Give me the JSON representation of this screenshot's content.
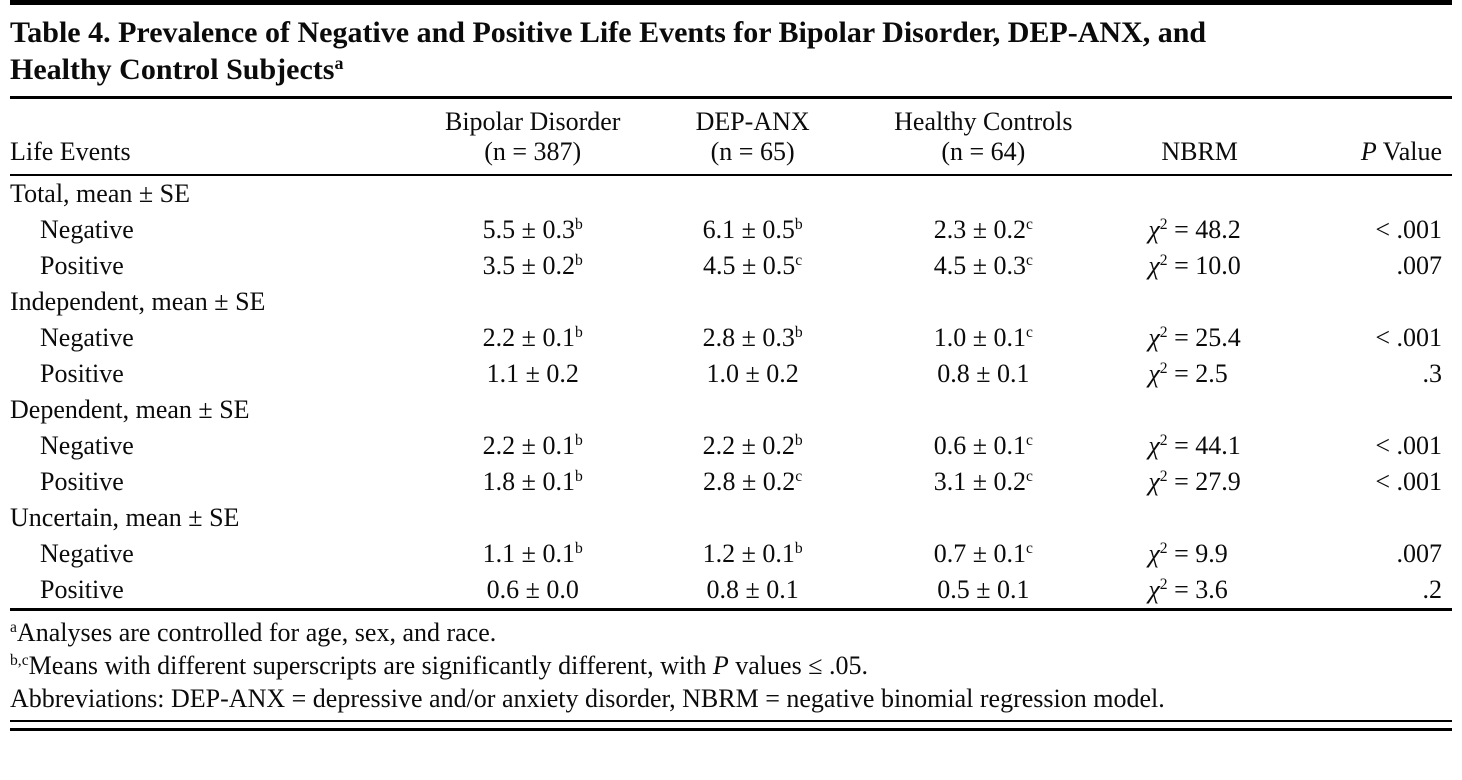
{
  "colors": {
    "background": "#ffffff",
    "text": "#000000",
    "rule": "#000000"
  },
  "table": {
    "title_line1": "Table 4. Prevalence of Negative and Positive Life Events for Bipolar Disorder, DEP-ANX, and",
    "title_line2": "Healthy Control Subjects",
    "title_sup": "a",
    "headers": {
      "life_events": "Life Events",
      "col2_line1": "Bipolar Disorder",
      "col2_line2": "(n = 387)",
      "col3_line1": "DEP-ANX",
      "col3_line2": "(n = 65)",
      "col4_line1": "Healthy Controls",
      "col4_line2": "(n = 64)",
      "nbrm": "NBRM",
      "p_italic": "P",
      "p_rest": " Value"
    },
    "rows": [
      {
        "type": "section",
        "label": "Total, mean ± SE"
      },
      {
        "type": "data",
        "label": "Negative",
        "cells": [
          {
            "v": "5.5 ± 0.3",
            "s": "b"
          },
          {
            "v": "6.1 ± 0.5",
            "s": "b"
          },
          {
            "v": "2.3 ± 0.2",
            "s": "c"
          }
        ],
        "nbrm": {
          "sym": "χ",
          "sup": "2",
          "val": "= 48.2"
        },
        "p": "< .001"
      },
      {
        "type": "data",
        "label": "Positive",
        "cells": [
          {
            "v": "3.5 ± 0.2",
            "s": "b"
          },
          {
            "v": "4.5 ± 0.5",
            "s": "c"
          },
          {
            "v": "4.5 ± 0.3",
            "s": "c"
          }
        ],
        "nbrm": {
          "sym": "χ",
          "sup": "2",
          "val": "= 10.0"
        },
        "p": ".007"
      },
      {
        "type": "section",
        "label": "Independent, mean ± SE"
      },
      {
        "type": "data",
        "label": "Negative",
        "cells": [
          {
            "v": "2.2 ± 0.1",
            "s": "b"
          },
          {
            "v": "2.8 ± 0.3",
            "s": "b"
          },
          {
            "v": "1.0 ± 0.1",
            "s": "c"
          }
        ],
        "nbrm": {
          "sym": "χ",
          "sup": "2",
          "val": "= 25.4"
        },
        "p": "< .001"
      },
      {
        "type": "data",
        "label": "Positive",
        "cells": [
          {
            "v": "1.1 ± 0.2",
            "s": ""
          },
          {
            "v": "1.0 ± 0.2",
            "s": ""
          },
          {
            "v": "0.8 ± 0.1",
            "s": ""
          }
        ],
        "nbrm": {
          "sym": "χ",
          "sup": "2",
          "val": "= 2.5"
        },
        "p": ".3"
      },
      {
        "type": "section",
        "label": "Dependent, mean ± SE"
      },
      {
        "type": "data",
        "label": "Negative",
        "cells": [
          {
            "v": "2.2 ± 0.1",
            "s": "b"
          },
          {
            "v": "2.2 ± 0.2",
            "s": "b"
          },
          {
            "v": "0.6 ± 0.1",
            "s": "c"
          }
        ],
        "nbrm": {
          "sym": "χ",
          "sup": "2",
          "val": "= 44.1"
        },
        "p": "< .001"
      },
      {
        "type": "data",
        "label": "Positive",
        "cells": [
          {
            "v": "1.8 ± 0.1",
            "s": "b"
          },
          {
            "v": "2.8 ± 0.2",
            "s": "c"
          },
          {
            "v": "3.1 ± 0.2",
            "s": "c"
          }
        ],
        "nbrm": {
          "sym": "χ",
          "sup": "2",
          "val": "= 27.9"
        },
        "p": "< .001"
      },
      {
        "type": "section",
        "label": "Uncertain, mean ± SE"
      },
      {
        "type": "data",
        "label": "Negative",
        "cells": [
          {
            "v": "1.1 ± 0.1",
            "s": "b"
          },
          {
            "v": "1.2 ± 0.1",
            "s": "b"
          },
          {
            "v": "0.7 ± 0.1",
            "s": "c"
          }
        ],
        "nbrm": {
          "sym": "χ",
          "sup": "2",
          "val": "= 9.9"
        },
        "p": ".007"
      },
      {
        "type": "data",
        "label": "Positive",
        "cells": [
          {
            "v": "0.6 ± 0.0",
            "s": ""
          },
          {
            "v": "0.8 ± 0.1",
            "s": ""
          },
          {
            "v": "0.5 ± 0.1",
            "s": ""
          }
        ],
        "nbrm": {
          "sym": "χ",
          "sup": "2",
          "val": "= 3.6"
        },
        "p": ".2"
      }
    ],
    "footnotes": [
      {
        "sup": "a",
        "pre": "Analyses are controlled for age, sex, and race.",
        "italic": "",
        "post": ""
      },
      {
        "sup": "b,c",
        "pre": "Means with different superscripts are significantly different, with ",
        "italic": "P",
        "post": " values ≤ .05."
      },
      {
        "sup": "",
        "pre": "Abbreviations: DEP-ANX = depressive and/or anxiety disorder, NBRM = negative binomial regression model.",
        "italic": "",
        "post": ""
      }
    ]
  }
}
